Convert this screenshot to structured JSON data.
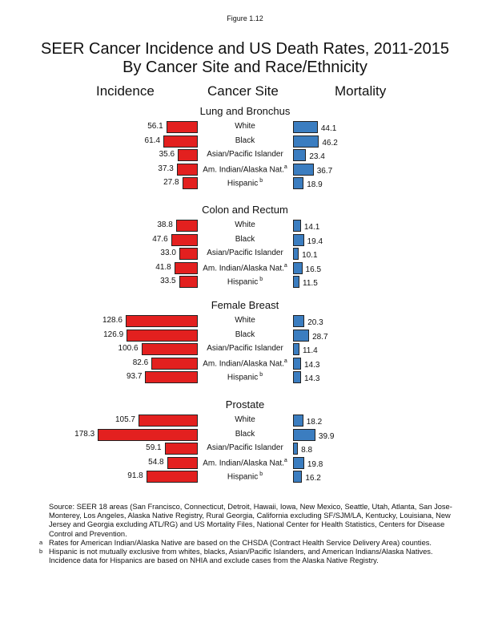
{
  "figure_label": "Figure 1.12",
  "chart_data": {
    "type": "bar",
    "title": "SEER Cancer Incidence and US Death Rates, 2011-2015",
    "subtitle": "By Cancer Site and Race/Ethnicity",
    "column_headers": {
      "left": "Incidence",
      "center": "Cancer Site",
      "right": "Mortality"
    },
    "categories": [
      "White",
      "Black",
      "Asian/Pacific Islander",
      "Am. Indian/Alaska Nat.",
      "Hispanic"
    ],
    "category_superscripts": [
      "",
      "",
      "",
      "a",
      "b"
    ],
    "colors": {
      "incidence": "#e3201f",
      "mortality": "#3b7dc0"
    },
    "sites": [
      {
        "name": "Lung and Bronchus",
        "incidence": [
          56.1,
          61.4,
          35.6,
          37.3,
          27.8
        ],
        "mortality": [
          44.1,
          46.2,
          23.4,
          36.7,
          18.9
        ]
      },
      {
        "name": "Colon and Rectum",
        "incidence": [
          38.8,
          47.6,
          33.0,
          41.8,
          33.5
        ],
        "mortality": [
          14.1,
          19.4,
          10.1,
          16.5,
          11.5
        ]
      },
      {
        "name": "Female Breast",
        "incidence": [
          128.6,
          126.9,
          100.6,
          82.6,
          93.7
        ],
        "mortality": [
          20.3,
          28.7,
          11.4,
          14.3,
          14.3
        ]
      },
      {
        "name": "Prostate",
        "incidence": [
          105.7,
          178.3,
          59.1,
          54.8,
          91.8
        ],
        "mortality": [
          18.2,
          39.9,
          8.8,
          19.8,
          16.2
        ]
      }
    ]
  },
  "notes": {
    "source": "Source: SEER 18 areas (San Francisco, Connecticut, Detroit, Hawaii, Iowa, New Mexico, Seattle, Utah, Atlanta, San Jose-Monterey, Los Angeles, Alaska Native Registry, Rural Georgia, California excluding SF/SJM/LA, Kentucky, Louisiana, New Jersey and Georgia excluding ATL/RG) and US Mortality Files, National Center for Health Statistics, Centers for Disease Control and Prevention.",
    "a_mark": "a",
    "a": "Rates for American Indian/Alaska Native are based on the CHSDA (Contract Health Service Delivery Area) counties.",
    "b_mark": "b",
    "b": "Hispanic is not mutually exclusive from whites, blacks, Asian/Pacific Islanders, and American Indians/Alaska Natives.",
    "extra": "Incidence data for Hispanics are based on NHIA and exclude cases from the Alaska Native Registry."
  }
}
